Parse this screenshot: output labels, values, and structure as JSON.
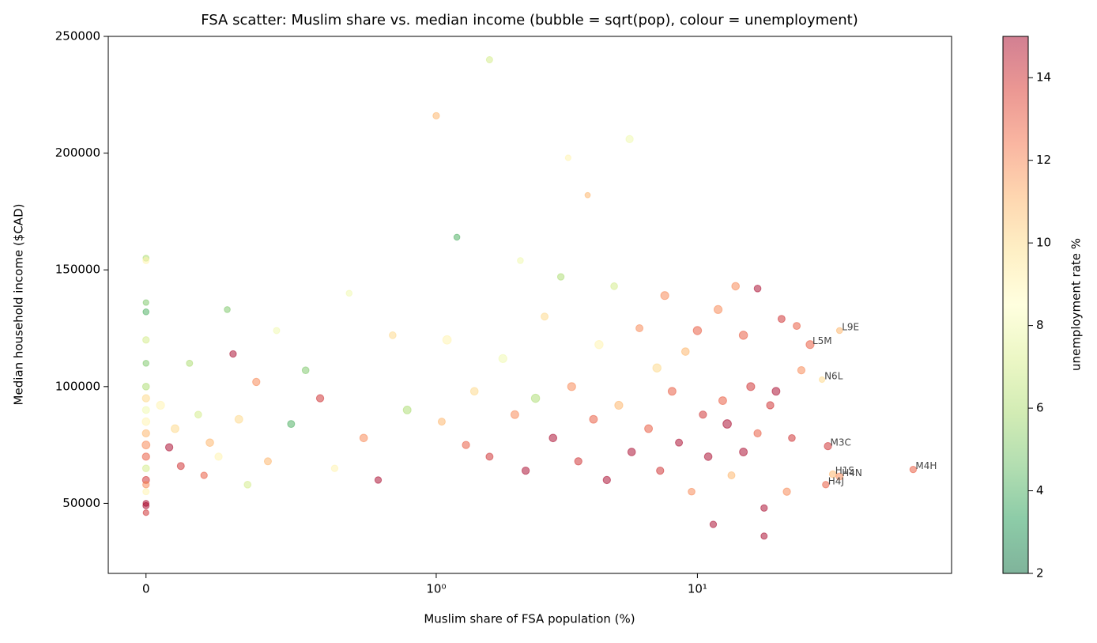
{
  "chart_data": {
    "type": "scatter",
    "title": "FSA scatter: Muslim share vs. median income (bubble = sqrt(pop), colour = unemployment)",
    "x_label": "Muslim share of FSA population (%)",
    "y_label": "Median household income ($CAD)",
    "colorbar_label": "unemployment rate %",
    "x_scale": "symlog",
    "x_linthresh": 1,
    "xlim": [
      -0.13,
      94
    ],
    "ylim": [
      20000,
      250000
    ],
    "xticks": [
      0,
      {
        "value": 1,
        "label": "10⁰"
      },
      {
        "value": 10,
        "label": "10¹"
      }
    ],
    "yticks": [
      50000,
      100000,
      150000,
      200000,
      250000
    ],
    "colormap": "RdYlGn_r",
    "clim": [
      2,
      15
    ],
    "cticks": [
      2,
      4,
      6,
      8,
      10,
      12,
      14
    ],
    "alpha": 0.5,
    "x": [
      0,
      0,
      0,
      0,
      0,
      0,
      0,
      0,
      0,
      0,
      0,
      0,
      0,
      0,
      0,
      0,
      0,
      0,
      0,
      0,
      0.05,
      0.08,
      0.1,
      0.12,
      0.15,
      0.18,
      0.2,
      0.22,
      0.25,
      0.28,
      0.3,
      0.32,
      0.35,
      0.38,
      0.42,
      0.45,
      0.5,
      0.55,
      0.6,
      0.65,
      0.7,
      0.75,
      0.8,
      0.85,
      0.9,
      1.0,
      1.05,
      1.1,
      1.2,
      1.3,
      1.4,
      1.6,
      1.6,
      1.8,
      2.0,
      2.1,
      2.2,
      2.4,
      2.6,
      2.8,
      3.0,
      3.2,
      3.3,
      3.5,
      3.8,
      4.0,
      4.2,
      4.5,
      4.8,
      5.0,
      5.5,
      5.6,
      6.0,
      6.5,
      7.0,
      7.2,
      7.5,
      8.0,
      8.5,
      9.0,
      9.5,
      10,
      10.5,
      11,
      11.5,
      12,
      12.5,
      13,
      13.5,
      14,
      15,
      15,
      16,
      17,
      17,
      18,
      18,
      19,
      20,
      21,
      22,
      23,
      24,
      25,
      35,
      27,
      30,
      31.6,
      33,
      35,
      31,
      67
    ],
    "values": [
      155000,
      154000,
      136000,
      132000,
      120000,
      110000,
      100000,
      95000,
      90000,
      85000,
      80000,
      75000,
      70000,
      65000,
      60000,
      58000,
      55000,
      50000,
      49000,
      46000,
      92000,
      74000,
      82000,
      66000,
      110000,
      88000,
      62000,
      76000,
      70000,
      133000,
      114000,
      86000,
      58000,
      102000,
      68000,
      124000,
      84000,
      107000,
      95000,
      65000,
      140000,
      78000,
      60000,
      122000,
      90000,
      216000,
      85000,
      120000,
      164000,
      75000,
      98000,
      240000,
      70000,
      112000,
      88000,
      154000,
      64000,
      95000,
      130000,
      78000,
      147000,
      198000,
      100000,
      68000,
      182000,
      86000,
      118000,
      60000,
      143000,
      92000,
      206000,
      72000,
      125000,
      82000,
      108000,
      64000,
      139000,
      98000,
      76000,
      115000,
      55000,
      124000,
      88000,
      70000,
      41000,
      133000,
      94000,
      84000,
      62000,
      143000,
      122000,
      72000,
      100000,
      142000,
      80000,
      48000,
      36000,
      92000,
      98000,
      129000,
      55000,
      78000,
      126000,
      107000,
      124000,
      118000,
      103000,
      74500,
      62500,
      61500,
      58000,
      64500
    ],
    "sizes": [
      20,
      22,
      18,
      20,
      24,
      20,
      26,
      30,
      28,
      32,
      30,
      34,
      30,
      26,
      28,
      24,
      22,
      20,
      22,
      18,
      36,
      30,
      34,
      28,
      22,
      26,
      24,
      32,
      30,
      20,
      24,
      34,
      26,
      30,
      28,
      22,
      28,
      26,
      30,
      24,
      20,
      32,
      24,
      26,
      34,
      24,
      28,
      40,
      20,
      30,
      32,
      22,
      28,
      36,
      34,
      20,
      30,
      38,
      28,
      32,
      24,
      18,
      36,
      30,
      16,
      34,
      38,
      30,
      26,
      36,
      30,
      32,
      28,
      34,
      38,
      30,
      36,
      34,
      28,
      32,
      26,
      38,
      30,
      32,
      24,
      36,
      34,
      40,
      28,
      32,
      38,
      34,
      36,
      26,
      30,
      24,
      22,
      30,
      34,
      28,
      30,
      26,
      28,
      30,
      20,
      36,
      18,
      30,
      26,
      28,
      24,
      24
    ],
    "unemployment": [
      6,
      9,
      5,
      4,
      7,
      5,
      6,
      10,
      8,
      9,
      11,
      12,
      13,
      7,
      14,
      12,
      9,
      15,
      15,
      14,
      9,
      15,
      10,
      14,
      6,
      7,
      13,
      11,
      9,
      5,
      15,
      10,
      7,
      12,
      11,
      8,
      4,
      5,
      14,
      9,
      8,
      12,
      15,
      10,
      6,
      11,
      11,
      9,
      4,
      13,
      10,
      7,
      14,
      8,
      12,
      8,
      15,
      6,
      10,
      15,
      6,
      9,
      12,
      14,
      11,
      13,
      9,
      15,
      7,
      11,
      8,
      15,
      12,
      13,
      10,
      14,
      12,
      13,
      15,
      11,
      12,
      13,
      14,
      15,
      15,
      12,
      13,
      15,
      11,
      12,
      13,
      15,
      14,
      15,
      13,
      15,
      15,
      14,
      15,
      14,
      12,
      14,
      13,
      12,
      11,
      13,
      10,
      14,
      11,
      12,
      13,
      13
    ],
    "annotations": [
      {
        "text": "L9E",
        "x": 35,
        "y": 124000
      },
      {
        "text": "L5M",
        "x": 27,
        "y": 118000
      },
      {
        "text": "N6L",
        "x": 30,
        "y": 103000
      },
      {
        "text": "M3C",
        "x": 31.6,
        "y": 74500
      },
      {
        "text": "H1S",
        "x": 33,
        "y": 62500
      },
      {
        "text": "H4N",
        "x": 35,
        "y": 61500
      },
      {
        "text": "H4J",
        "x": 31,
        "y": 58000
      },
      {
        "text": "M4H",
        "x": 67,
        "y": 64500
      }
    ]
  }
}
